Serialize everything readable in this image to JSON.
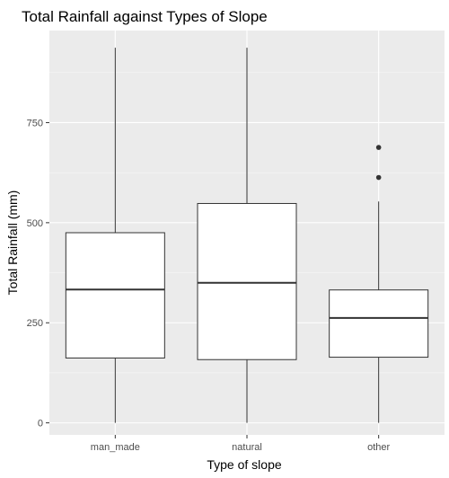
{
  "chart_data": {
    "type": "boxplot",
    "title": "Total Rainfall against Types of Slope",
    "xlabel": "Type of slope",
    "ylabel": "Total Rainfall (mm)",
    "categories": [
      "man_made",
      "natural",
      "other"
    ],
    "y_ticks": [
      0,
      250,
      500,
      750
    ],
    "y_tick_labels": [
      "0",
      "250",
      "500",
      "750"
    ],
    "ylim": [
      -30,
      980
    ],
    "grid": true,
    "boxes": [
      {
        "category": "man_made",
        "min": 0,
        "q1": 162,
        "median": 333,
        "q3": 475,
        "max": 937,
        "outliers": []
      },
      {
        "category": "natural",
        "min": 0,
        "q1": 158,
        "median": 350,
        "q3": 548,
        "max": 937,
        "outliers": []
      },
      {
        "category": "other",
        "min": 0,
        "q1": 164,
        "median": 262,
        "q3": 332,
        "max": 553,
        "outliers": [
          613,
          688
        ]
      }
    ],
    "colors": {
      "panel": "#ebebeb",
      "grid_major": "#ffffff",
      "box_fill": "#ffffff",
      "box_stroke": "#333333",
      "outlier": "#333333",
      "tick": "#333333"
    }
  }
}
